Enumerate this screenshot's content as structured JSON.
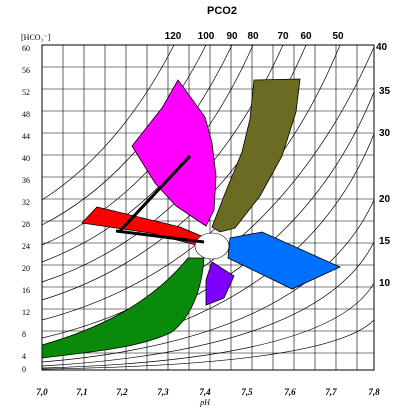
{
  "labels": {
    "top_title": "PCO2",
    "y_axis": "[HCO₃⁻]",
    "x_axis": "pH"
  },
  "pco2_top": [
    "120",
    "100",
    "90",
    "80",
    "70",
    "60",
    "50"
  ],
  "pco2_right": [
    "40",
    "35",
    "30",
    "20",
    "15",
    "10"
  ],
  "hco3_ticks": [
    "60",
    "56",
    "52",
    "48",
    "44",
    "40",
    "36",
    "32",
    "28",
    "24",
    "20",
    "16",
    "12",
    "8",
    "4",
    "0"
  ],
  "ph_ticks": [
    "7,0",
    "7,1",
    "7,2",
    "7,3",
    "7,4",
    "7,5",
    "7,6",
    "7,7",
    "7,8"
  ],
  "region_colors": {
    "magenta": "#ff00ff",
    "olive": "#6b6b23",
    "red": "#ff0000",
    "blue": "#0070ff",
    "purple": "#8000ff",
    "green": "#0a8a0a",
    "white_center": "#ffffff"
  }
}
